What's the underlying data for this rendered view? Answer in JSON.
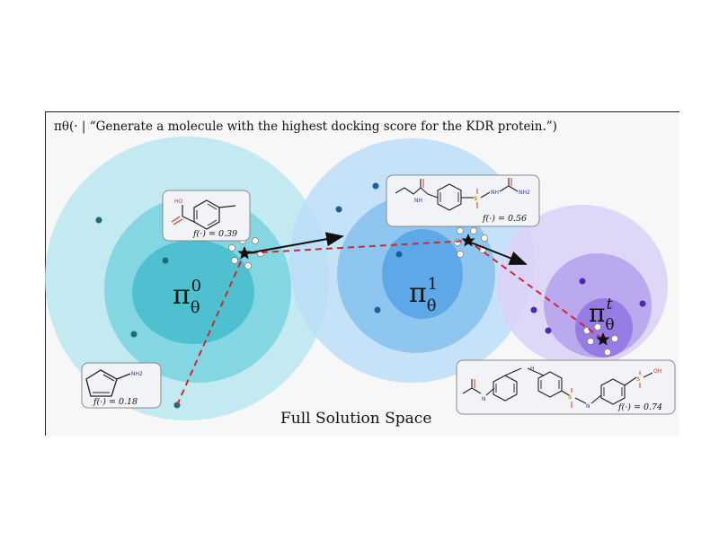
{
  "prompt": "πθ(· | “Generate a molecule with the highest docking score for the KDR protein.”)",
  "caption": "Full Solution Space",
  "policies": [
    {
      "symbol": "π",
      "sub": "θ",
      "sup": "0"
    },
    {
      "symbol": "π",
      "sub": "θ",
      "sup": "1"
    },
    {
      "symbol": "π",
      "sub": "θ",
      "sup": "t"
    }
  ],
  "molecules": {
    "m1": {
      "score": "f(·) = 0.18",
      "label": "NH2"
    },
    "m2": {
      "score": "f(·) = 0.39",
      "label": "HO"
    },
    "m3": {
      "score": "f(·) = 0.56",
      "label_nh": "NH",
      "label_s": "S",
      "label_nh2": "NH2"
    },
    "m4": {
      "score": "f(·) = 0.74",
      "label_n": "N",
      "label_h": "H",
      "label_s": "S",
      "label_oh": "OH"
    }
  },
  "colors": {
    "teal_outer": "#b8e8ee",
    "teal_mid": "#6fd0de",
    "teal_inner": "#3db8c8",
    "blue_outer": "#b9dcf7",
    "blue_mid": "#7cbcee",
    "blue_inner": "#4e9ee6",
    "purple_outer": "#dcd3f7",
    "purple_mid": "#b7a4ee",
    "purple_inner": "#8e6fe2",
    "trajectory": "#d62728",
    "arrow": "#111111"
  }
}
